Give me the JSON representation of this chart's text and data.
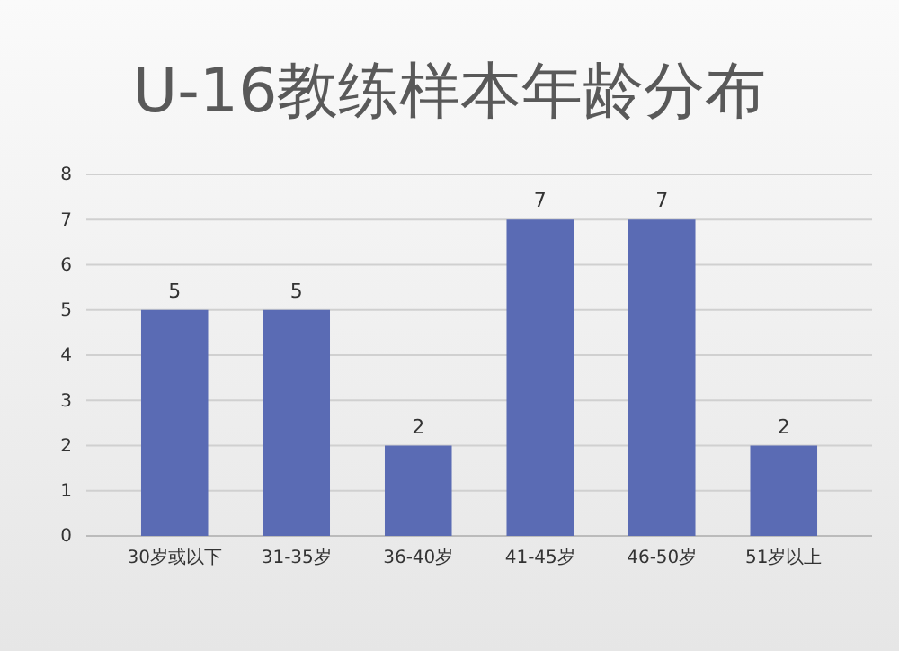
{
  "chart_data": {
    "type": "bar",
    "title": "U-16教练样本年龄分布",
    "categories": [
      "30岁或以下",
      "31-35岁",
      "36-40岁",
      "41-45岁",
      "46-50岁",
      "51岁以上"
    ],
    "values": [
      5,
      5,
      2,
      7,
      7,
      2
    ],
    "color": "#5a6bb4",
    "ylim": [
      0,
      8
    ],
    "yticks": [
      0,
      1,
      2,
      3,
      4,
      5,
      6,
      7,
      8
    ],
    "grid": "y",
    "data_labels": true
  }
}
